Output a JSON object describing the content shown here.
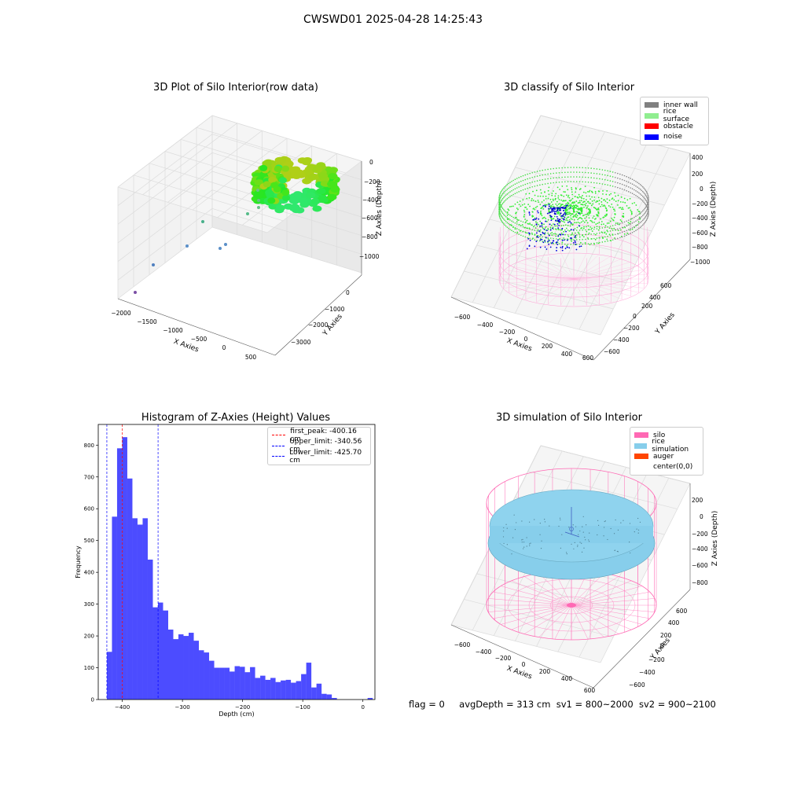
{
  "figure": {
    "suptitle": "CWSWD01 2025-04-28 14:25:43",
    "footer": {
      "flag": "flag = 0",
      "avg_depth": "avgDepth = 313 cm",
      "sv1": "sv1 = 800~2000",
      "sv2": "sv2 = 900~2100"
    }
  },
  "panels": {
    "raw": {
      "title": "3D Plot of Silo Interior(row data)",
      "xlabel": "X Axies",
      "ylabel": "Y Axies",
      "zlabel": "Z Axies (Depth)",
      "xticks": [
        "−2000",
        "−1500",
        "−1000",
        "−500",
        "0",
        "500"
      ],
      "yticks": [
        "0",
        "−1000",
        "−2000",
        "−3000"
      ],
      "zticks": [
        "0",
        "−200",
        "−400",
        "−600",
        "−800",
        "−1000"
      ]
    },
    "classify": {
      "title": "3D classify of Silo Interior",
      "xlabel": "X Axies",
      "ylabel": "Y Axies",
      "zlabel": "Z Axies (Depth)",
      "xticks": [
        "−600",
        "−400",
        "−200",
        "0",
        "200",
        "400",
        "600"
      ],
      "yticks": [
        "600",
        "400",
        "200",
        "0",
        "−200",
        "−400",
        "−600"
      ],
      "zticks": [
        "400",
        "200",
        "0",
        "−200",
        "−400",
        "−600",
        "−800",
        "−1000"
      ],
      "legend": [
        {
          "label": "inner wall",
          "color": "#808080"
        },
        {
          "label": "rice surface",
          "color": "#90ee90"
        },
        {
          "label": "obstacle",
          "color": "#ff0000"
        },
        {
          "label": "noise",
          "color": "#0000ff"
        }
      ]
    },
    "simulation": {
      "title": "3D simulation of Silo Interior",
      "xlabel": "X Axies",
      "ylabel": "Y Axies",
      "zlabel": "Z Axies (Depth)",
      "xticks": [
        "−600",
        "−400",
        "−200",
        "0",
        "200",
        "400",
        "600"
      ],
      "yticks": [
        "600",
        "400",
        "200",
        "0",
        "−200",
        "−400",
        "−600"
      ],
      "zticks": [
        "200",
        "0",
        "−200",
        "−400",
        "−600",
        "−800"
      ],
      "legend": [
        {
          "label": "silo",
          "color": "#ff69b4"
        },
        {
          "label": "rice simulation",
          "color": "#87ceeb"
        },
        {
          "label": "auger",
          "color": "#ff4500"
        },
        {
          "label": "center(0,0)",
          "color": "#ffffff"
        }
      ]
    }
  },
  "chart_data": {
    "type": "bar",
    "title": "Histogram of Z-Axies (Height) Values",
    "xlabel": "Depth (cm)",
    "ylabel": "Frequency",
    "xlim": [
      -440,
      20
    ],
    "ylim": [
      0,
      865
    ],
    "xticks": [
      -400,
      -300,
      -200,
      -100,
      0
    ],
    "yticks": [
      0,
      100,
      200,
      300,
      400,
      500,
      600,
      700,
      800
    ],
    "bar_color": "#0000ff",
    "bin_start": -425.7,
    "bin_width": 8.5,
    "values": [
      150,
      575,
      790,
      825,
      695,
      570,
      550,
      570,
      440,
      290,
      305,
      280,
      220,
      190,
      205,
      200,
      210,
      185,
      155,
      148,
      122,
      100,
      100,
      100,
      88,
      105,
      103,
      86,
      102,
      68,
      75,
      62,
      68,
      55,
      60,
      62,
      53,
      58,
      80,
      116,
      38,
      50,
      18,
      16,
      5,
      0,
      0,
      0,
      0,
      0,
      0,
      5
    ],
    "vlines": [
      {
        "label": "first_peak: -400.16 cm",
        "x": -400.16,
        "color": "#ff0000"
      },
      {
        "label": "Upper_limit: -340.56 cm",
        "x": -340.56,
        "color": "#0000ff"
      },
      {
        "label": "Lower_limit: -425.70 cm",
        "x": -425.7,
        "color": "#0000ff"
      }
    ],
    "legend_position": "upper right"
  }
}
